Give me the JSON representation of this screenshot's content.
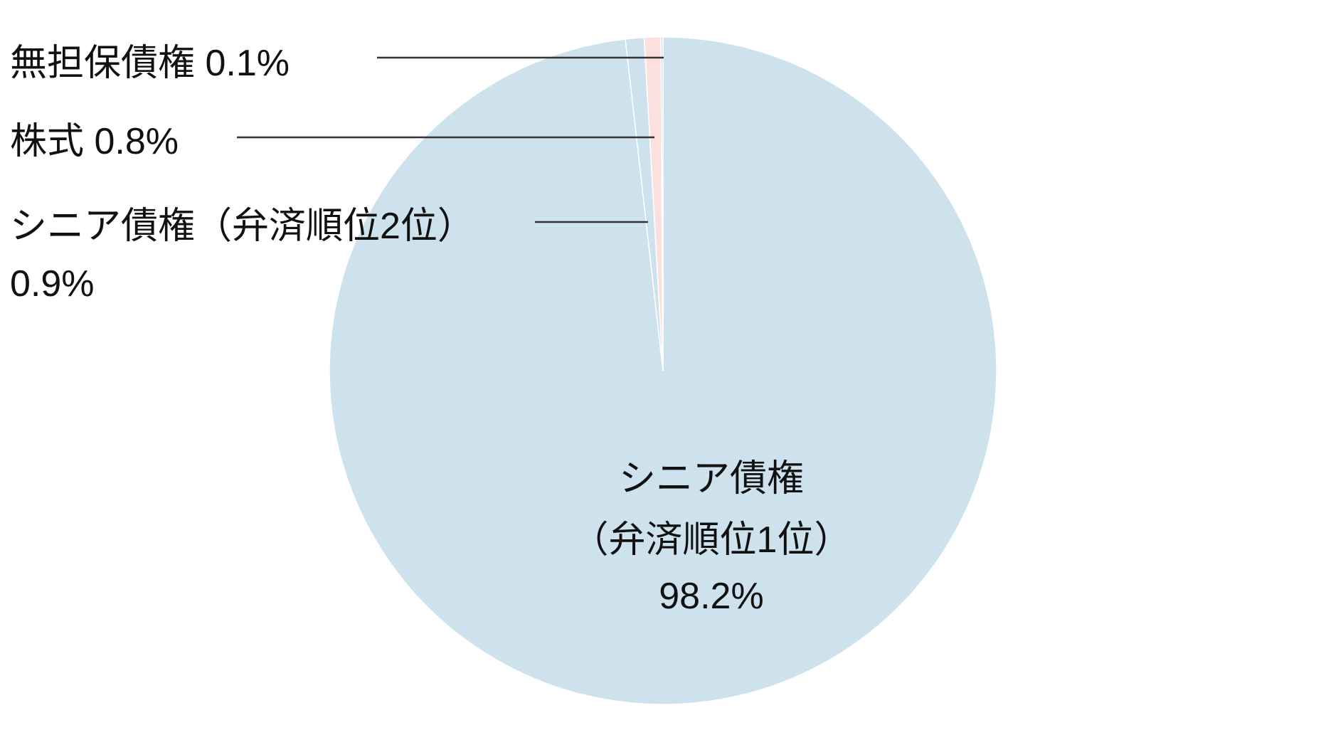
{
  "chart_data": {
    "type": "pie",
    "start": "top",
    "direction": "clockwise",
    "slices": [
      {
        "label_lines": [
          "シニア債権",
          "（弁済順位1位）",
          "98.2%"
        ],
        "value": 98.2,
        "color": "#cde2ec"
      },
      {
        "label_lines": [
          "シニア債権（弁済順位2位）",
          "0.9%"
        ],
        "value": 0.9,
        "color": "#cde2ec"
      },
      {
        "label_lines": [
          "株式 0.8%"
        ],
        "value": 0.8,
        "color": "#fbe0de"
      },
      {
        "label_lines": [
          "無担保債権 0.1%"
        ],
        "value": 0.1,
        "color": "#cde2ec"
      }
    ],
    "legend": "none"
  }
}
